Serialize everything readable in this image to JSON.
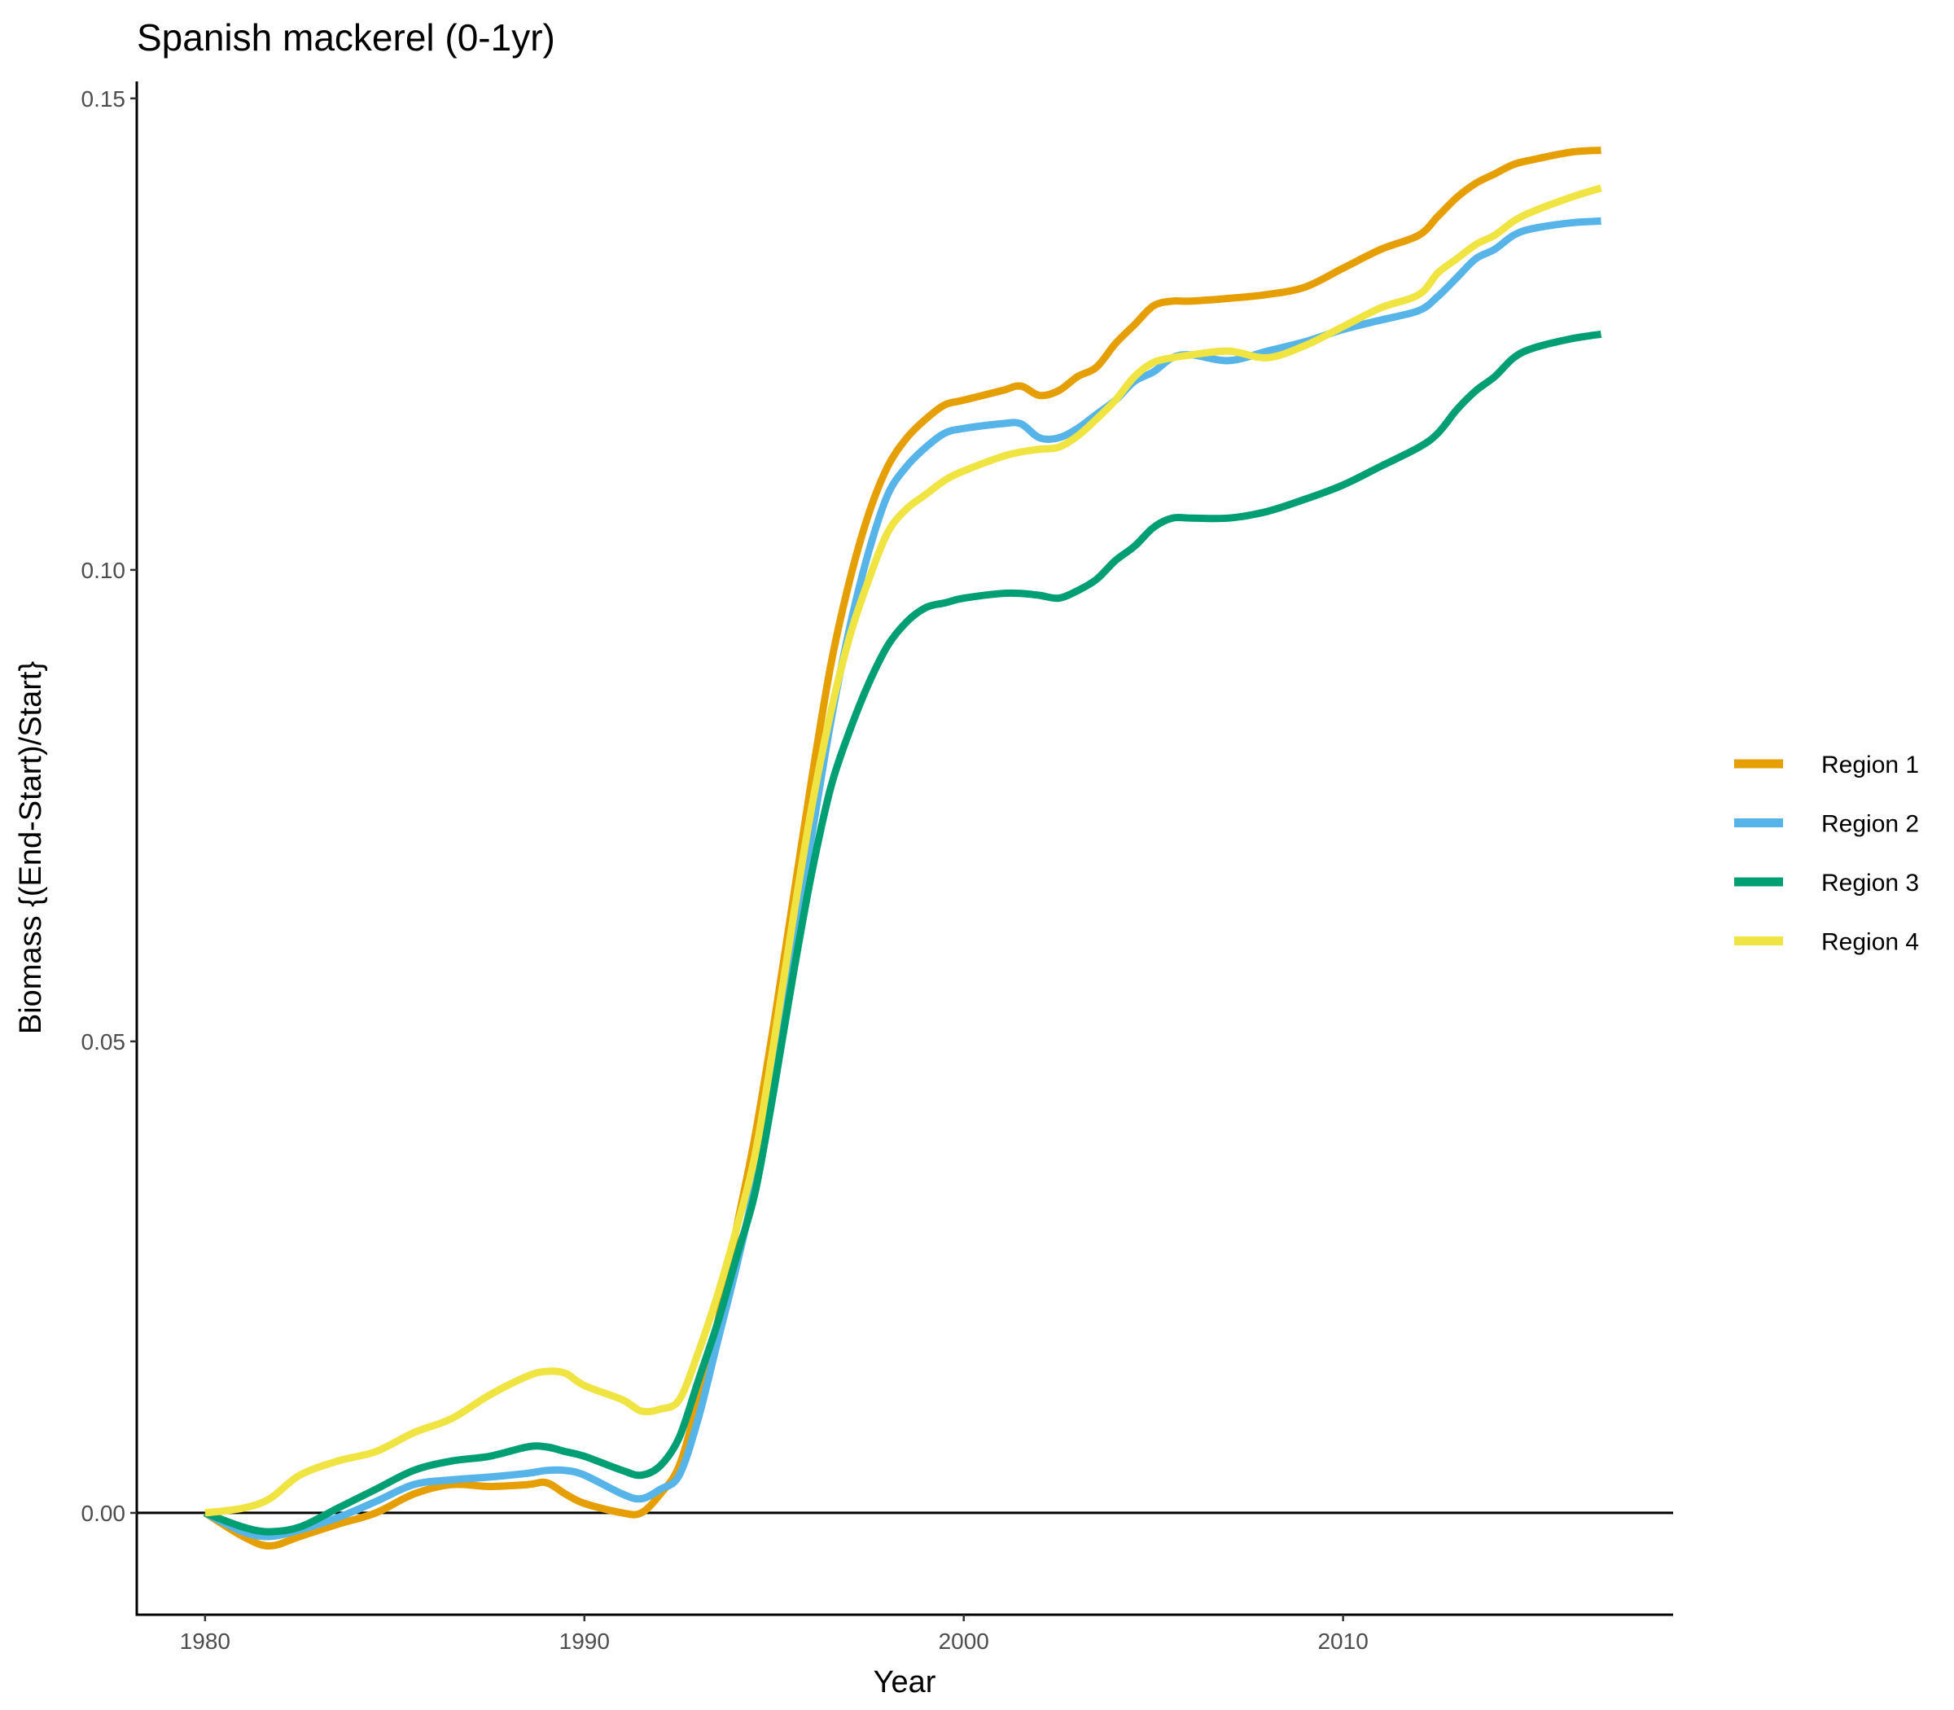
{
  "chart_data": {
    "type": "line",
    "title": "Spanish mackerel (0-1yr)",
    "xlabel": "Year",
    "ylabel": "Biomass {(End-Start)/Start}",
    "xlim": [
      1978.2,
      2018.7
    ],
    "ylim": [
      -0.0108,
      0.1518
    ],
    "x_ticks": [
      1980,
      1990,
      2000,
      2010
    ],
    "x_tick_labels": [
      "1980",
      "1990",
      "2000",
      "2010"
    ],
    "y_ticks": [
      0.0,
      0.05,
      0.1,
      0.15
    ],
    "y_tick_labels": [
      "0.00",
      "0.05",
      "0.10",
      "0.15"
    ],
    "reference_line": 0,
    "grid": false,
    "legend_position": "right",
    "series": [
      {
        "name": "Region 1",
        "color": "#E69F00",
        "x": [
          1980,
          1981,
          1981.7,
          1982.5,
          1983.5,
          1984.5,
          1985.5,
          1986.5,
          1987.5,
          1988.5,
          1989,
          1989.5,
          1990,
          1991,
          1991.5,
          1992,
          1992.5,
          1993,
          1993.5,
          1994,
          1994.5,
          1995,
          1995.5,
          1996,
          1996.5,
          1997,
          1997.5,
          1998,
          1998.5,
          1999,
          1999.5,
          2000,
          2001,
          2001.5,
          2002,
          2002.5,
          2003,
          2003.5,
          2004,
          2004.5,
          2005,
          2005.5,
          2006,
          2007,
          2008,
          2009,
          2010,
          2011,
          2012,
          2012.5,
          2013,
          2013.5,
          2014,
          2014.5,
          2015,
          2016,
          2016.8
        ],
        "values": [
          0.0,
          -0.0025,
          -0.0035,
          -0.0025,
          -0.0012,
          0.0,
          0.002,
          0.003,
          0.0028,
          0.003,
          0.0032,
          0.002,
          0.001,
          0.0,
          0.0,
          0.002,
          0.005,
          0.012,
          0.02,
          0.03,
          0.04,
          0.052,
          0.065,
          0.078,
          0.09,
          0.099,
          0.106,
          0.111,
          0.114,
          0.116,
          0.1175,
          0.118,
          0.119,
          0.1195,
          0.1185,
          0.119,
          0.1205,
          0.1215,
          0.124,
          0.126,
          0.128,
          0.1285,
          0.1285,
          0.1288,
          0.1292,
          0.13,
          0.132,
          0.134,
          0.1355,
          0.1375,
          0.1395,
          0.141,
          0.142,
          0.143,
          0.1435,
          0.1443,
          0.1445
        ]
      },
      {
        "name": "Region 2",
        "color": "#56B4E9",
        "x": [
          1980,
          1981,
          1981.7,
          1982.5,
          1983.5,
          1984.5,
          1985.5,
          1986.5,
          1987.5,
          1988.5,
          1989,
          1989.5,
          1990,
          1991,
          1991.5,
          1992,
          1992.5,
          1993,
          1993.5,
          1994,
          1994.5,
          1995,
          1995.5,
          1996,
          1996.5,
          1997,
          1997.5,
          1998,
          1998.5,
          1999,
          1999.5,
          2000,
          2001,
          2001.5,
          2002,
          2002.5,
          2003,
          2003.5,
          2004,
          2004.5,
          2005,
          2005.5,
          2006,
          2007,
          2008,
          2009,
          2010,
          2011,
          2012,
          2012.5,
          2013,
          2013.5,
          2014,
          2014.5,
          2015,
          2016,
          2016.8
        ],
        "values": [
          0.0,
          -0.002,
          -0.0025,
          -0.0018,
          -0.0005,
          0.0012,
          0.003,
          0.0035,
          0.0038,
          0.0042,
          0.0045,
          0.0045,
          0.004,
          0.002,
          0.0015,
          0.0025,
          0.004,
          0.01,
          0.018,
          0.026,
          0.035,
          0.047,
          0.06,
          0.072,
          0.084,
          0.094,
          0.102,
          0.108,
          0.111,
          0.113,
          0.1145,
          0.115,
          0.1155,
          0.1155,
          0.114,
          0.114,
          0.115,
          0.1165,
          0.118,
          0.12,
          0.121,
          0.1225,
          0.1228,
          0.1222,
          0.1232,
          0.1242,
          0.1255,
          0.1265,
          0.1275,
          0.129,
          0.131,
          0.133,
          0.134,
          0.1355,
          0.1362,
          0.1368,
          0.137
        ]
      },
      {
        "name": "Region 3",
        "color": "#009E73",
        "x": [
          1980,
          1981,
          1981.7,
          1982.5,
          1983.5,
          1984.5,
          1985.5,
          1986.5,
          1987.5,
          1988.5,
          1989,
          1989.5,
          1990,
          1991,
          1991.5,
          1992,
          1992.5,
          1993,
          1993.5,
          1994,
          1994.5,
          1995,
          1995.5,
          1996,
          1996.5,
          1997,
          1997.5,
          1998,
          1998.5,
          1999,
          1999.5,
          2000,
          2001,
          2001.5,
          2002,
          2002.5,
          2003,
          2003.5,
          2004,
          2004.5,
          2005,
          2005.5,
          2006,
          2007,
          2008,
          2009,
          2010,
          2011,
          2012,
          2012.5,
          2013,
          2013.5,
          2014,
          2014.5,
          2015,
          2016,
          2016.8
        ],
        "values": [
          0.0,
          -0.0015,
          -0.002,
          -0.0015,
          0.0005,
          0.0025,
          0.0045,
          0.0055,
          0.006,
          0.007,
          0.007,
          0.0065,
          0.006,
          0.0045,
          0.004,
          0.005,
          0.008,
          0.014,
          0.02,
          0.027,
          0.034,
          0.045,
          0.057,
          0.068,
          0.077,
          0.083,
          0.088,
          0.092,
          0.0945,
          0.096,
          0.0965,
          0.097,
          0.0975,
          0.0975,
          0.0973,
          0.097,
          0.0978,
          0.099,
          0.101,
          0.1025,
          0.1045,
          0.1055,
          0.1055,
          0.1055,
          0.1062,
          0.1075,
          0.109,
          0.111,
          0.113,
          0.1145,
          0.117,
          0.119,
          0.1205,
          0.1225,
          0.1235,
          0.1245,
          0.125
        ]
      },
      {
        "name": "Region 4",
        "color": "#F0E442",
        "x": [
          1980,
          1981,
          1981.7,
          1982.5,
          1983.5,
          1984.5,
          1985.5,
          1986.5,
          1987.5,
          1988.5,
          1989,
          1989.5,
          1990,
          1991,
          1991.5,
          1992,
          1992.5,
          1993,
          1993.5,
          1994,
          1994.5,
          1995,
          1995.5,
          1996,
          1996.5,
          1997,
          1997.5,
          1998,
          1998.5,
          1999,
          1999.5,
          2000,
          2001,
          2001.5,
          2002,
          2002.5,
          2003,
          2003.5,
          2004,
          2004.5,
          2005,
          2005.5,
          2006,
          2007,
          2008,
          2009,
          2010,
          2011,
          2012,
          2012.5,
          2013,
          2013.5,
          2014,
          2014.5,
          2015,
          2016,
          2016.8
        ],
        "values": [
          0.0,
          0.0005,
          0.0015,
          0.004,
          0.0055,
          0.0065,
          0.0085,
          0.01,
          0.0125,
          0.0145,
          0.015,
          0.0148,
          0.0135,
          0.012,
          0.0108,
          0.011,
          0.012,
          0.017,
          0.023,
          0.03,
          0.038,
          0.05,
          0.063,
          0.075,
          0.085,
          0.093,
          0.099,
          0.104,
          0.1065,
          0.108,
          0.1095,
          0.1105,
          0.112,
          0.1125,
          0.1128,
          0.113,
          0.1142,
          0.116,
          0.118,
          0.1205,
          0.122,
          0.1225,
          0.1228,
          0.1232,
          0.1225,
          0.1238,
          0.1258,
          0.1278,
          0.1292,
          0.1315,
          0.133,
          0.1345,
          0.1355,
          0.137,
          0.138,
          0.1395,
          0.1405
        ]
      }
    ]
  }
}
